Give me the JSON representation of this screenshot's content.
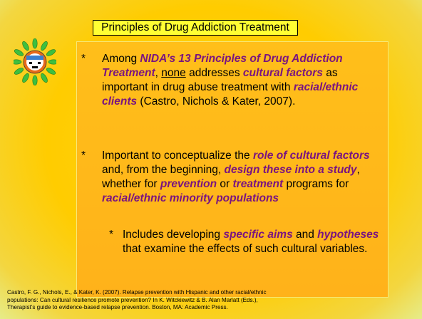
{
  "title": "Principles of Drug Addiction Treatment",
  "bullets": [
    {
      "marker": "*",
      "level": 1,
      "segments": [
        {
          "text": "Among "
        },
        {
          "text": "NIDA’s 13 Principles of Drug Addiction Treatment",
          "emphasis": true
        },
        {
          "text": ", "
        },
        {
          "text": "none",
          "underline": true
        },
        {
          "text": " addresses "
        },
        {
          "text": "cultural factors",
          "emphasis": true
        },
        {
          "text": " as important in drug abuse treatment with "
        },
        {
          "text": "racial/ethnic clients",
          "emphasis": true
        },
        {
          "text": " (Castro, Nichols & Kater, 2007)."
        }
      ]
    },
    {
      "marker": "*",
      "level": 1,
      "segments": [
        {
          "text": "Important to conceptualize the "
        },
        {
          "text": "role of cultural factors",
          "emphasis": true
        },
        {
          "text": " and, from the beginning, "
        },
        {
          "text": "design these into a study",
          "emphasis": true
        },
        {
          "text": ", whether for "
        },
        {
          "text": "prevention",
          "emphasis": true
        },
        {
          "text": " or "
        },
        {
          "text": "treatment",
          "emphasis": true
        },
        {
          "text": " programs for "
        },
        {
          "text": "racial/ethnic minority populations",
          "emphasis": true
        }
      ]
    },
    {
      "marker": "*",
      "level": 2,
      "segments": [
        {
          "text": "Includes developing "
        },
        {
          "text": "specific aims",
          "emphasis": true
        },
        {
          "text": " and "
        },
        {
          "text": "hypotheses",
          "emphasis": true
        },
        {
          "text": " that examine the effects of such cultural variables."
        }
      ]
    }
  ],
  "reference": [
    "Castro, F. G., Nichols, E., & Kater, K. (2007).  Relapse prevention with Hispanic and other racial/ethnic",
    "populations: Can cultural resilience promote prevention?  In K. Witckiewitz & B. Alan Marlatt (Eds.),",
    "Therapist’s guide to evidence-based relapse prevention.  Boston, MA: Academic Press."
  ]
}
